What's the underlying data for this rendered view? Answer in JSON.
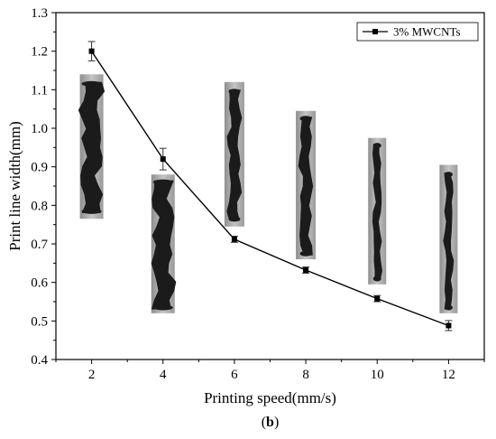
{
  "chart_data": {
    "type": "line",
    "x": [
      2,
      4,
      6,
      8,
      10,
      12
    ],
    "series": [
      {
        "name": "3% MWCNTs",
        "values": [
          1.2,
          0.92,
          0.712,
          0.632,
          0.558,
          0.488
        ],
        "errors": [
          0.025,
          0.028,
          0.008,
          0.008,
          0.008,
          0.013
        ],
        "color": "#000000",
        "marker": "square"
      }
    ],
    "xlabel": "Printing speed(mm/s)",
    "ylabel": "Print line width(mm)",
    "xlim": [
      1,
      13
    ],
    "ylim": [
      0.4,
      1.3
    ],
    "xticks": [
      2,
      4,
      6,
      8,
      10,
      12
    ],
    "yticks": [
      0.4,
      0.5,
      0.6,
      0.7,
      0.8,
      0.9,
      1.0,
      1.1,
      1.2,
      1.3
    ],
    "ytick_labels": [
      "0.4",
      "0.5",
      "0.6",
      "0.7",
      "0.8",
      "0.9",
      "1.0",
      "1.1",
      "1.2",
      "1.3"
    ],
    "grid": false,
    "legend_position": "top-right",
    "panel_label_open": "(",
    "panel_label_bold": "b",
    "panel_label_close": ")",
    "inset_photos": [
      {
        "x": 2,
        "y_top": 1.14,
        "y_bottom": 0.765,
        "line_top": 1.12,
        "line_bottom": 0.78,
        "thickness": "thick"
      },
      {
        "x": 4,
        "y_top": 0.88,
        "y_bottom": 0.52,
        "line_top": 0.865,
        "line_bottom": 0.53,
        "thickness": "thick"
      },
      {
        "x": 6,
        "y_top": 1.12,
        "y_bottom": 0.745,
        "line_top": 1.1,
        "line_bottom": 0.76,
        "thickness": "medium"
      },
      {
        "x": 8,
        "y_top": 1.045,
        "y_bottom": 0.66,
        "line_top": 1.03,
        "line_bottom": 0.67,
        "thickness": "medium"
      },
      {
        "x": 10,
        "y_top": 0.975,
        "y_bottom": 0.595,
        "line_top": 0.96,
        "line_bottom": 0.605,
        "thickness": "thin"
      },
      {
        "x": 12,
        "y_top": 0.905,
        "y_bottom": 0.52,
        "line_top": 0.885,
        "line_bottom": 0.53,
        "thickness": "thin"
      }
    ]
  }
}
